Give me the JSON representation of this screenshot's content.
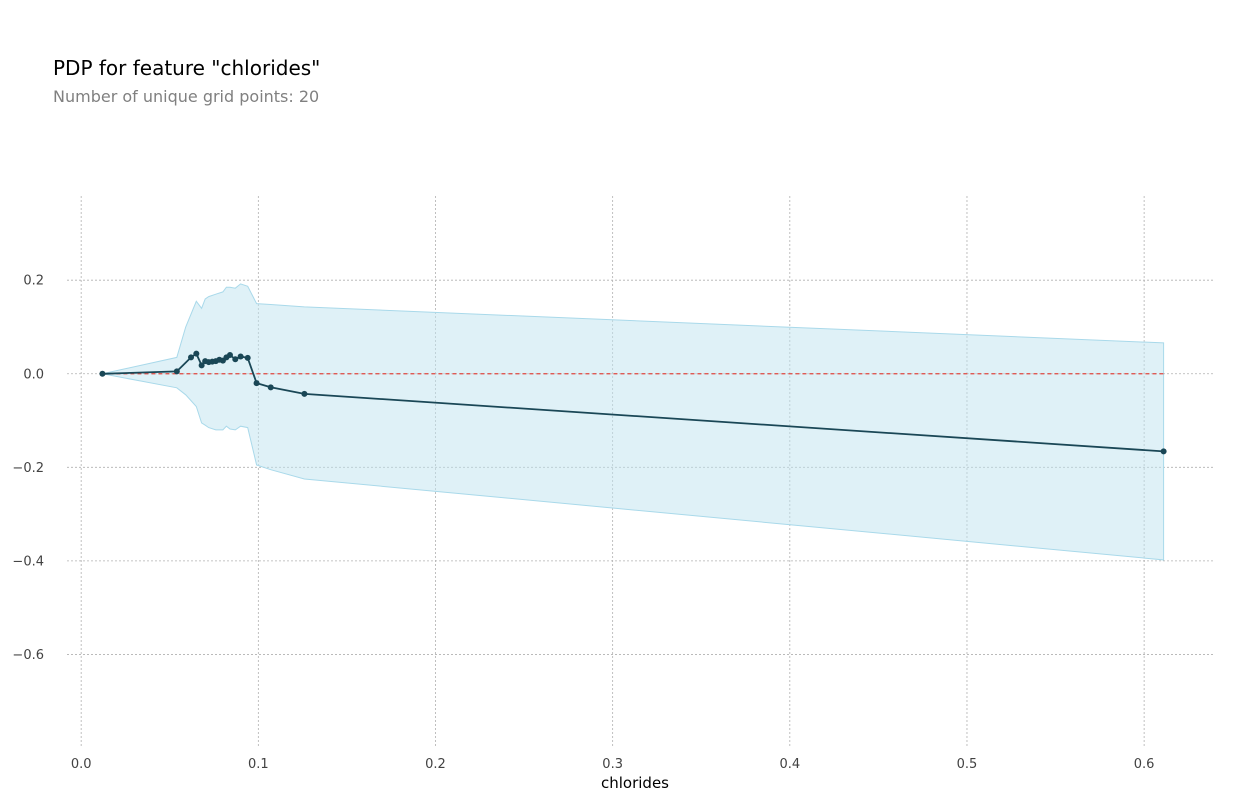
{
  "chart_data": {
    "type": "line",
    "title": "PDP for feature \"chlorides\"",
    "subtitle": "Number of unique grid points: 20",
    "xlabel": "chlorides",
    "ylabel": "",
    "xlim": [
      -0.008,
      0.64
    ],
    "ylim": [
      -0.8,
      0.38
    ],
    "xticks": [
      0.0,
      0.1,
      0.2,
      0.3,
      0.4,
      0.5,
      0.6
    ],
    "xtick_labels": [
      "0.0",
      "0.1",
      "0.2",
      "0.3",
      "0.4",
      "0.5",
      "0.6"
    ],
    "yticks": [
      0.2,
      0.0,
      -0.2,
      -0.4,
      -0.6
    ],
    "ytick_labels": [
      "0.2",
      "0.0",
      "−0.2",
      "−0.4",
      "−0.6"
    ],
    "grid": true,
    "legend": "none",
    "colors": {
      "line": "#1a4756",
      "band_fill": "#bfe3ef",
      "band_edge": "#a9d9ea",
      "baseline": "#e0473f",
      "grid": "#b0b0b0"
    },
    "series": [
      {
        "x": [
          0.012,
          0.054,
          0.062,
          0.065,
          0.068,
          0.07,
          0.072,
          0.074,
          0.076,
          0.078,
          0.08,
          0.082,
          0.084,
          0.087,
          0.09,
          0.094,
          0.099,
          0.107,
          0.126,
          0.611
        ],
        "y": [
          0.0,
          0.005,
          0.035,
          0.043,
          0.018,
          0.027,
          0.025,
          0.026,
          0.027,
          0.03,
          0.028,
          0.035,
          0.04,
          0.031,
          0.037,
          0.034,
          -0.02,
          -0.029,
          -0.043,
          -0.166
        ]
      }
    ],
    "band": {
      "x": [
        0.012,
        0.054,
        0.059,
        0.065,
        0.068,
        0.07,
        0.072,
        0.076,
        0.08,
        0.082,
        0.084,
        0.087,
        0.09,
        0.094,
        0.099,
        0.107,
        0.126,
        0.611
      ],
      "upper": [
        0.0,
        0.035,
        0.1,
        0.155,
        0.14,
        0.16,
        0.165,
        0.17,
        0.175,
        0.185,
        0.185,
        0.183,
        0.192,
        0.187,
        0.15,
        0.148,
        0.143,
        0.066
      ],
      "lower": [
        0.0,
        -0.03,
        -0.045,
        -0.07,
        -0.105,
        -0.11,
        -0.115,
        -0.12,
        -0.12,
        -0.112,
        -0.118,
        -0.12,
        -0.112,
        -0.115,
        -0.195,
        -0.205,
        -0.225,
        -0.398
      ]
    },
    "baseline": 0.0
  }
}
